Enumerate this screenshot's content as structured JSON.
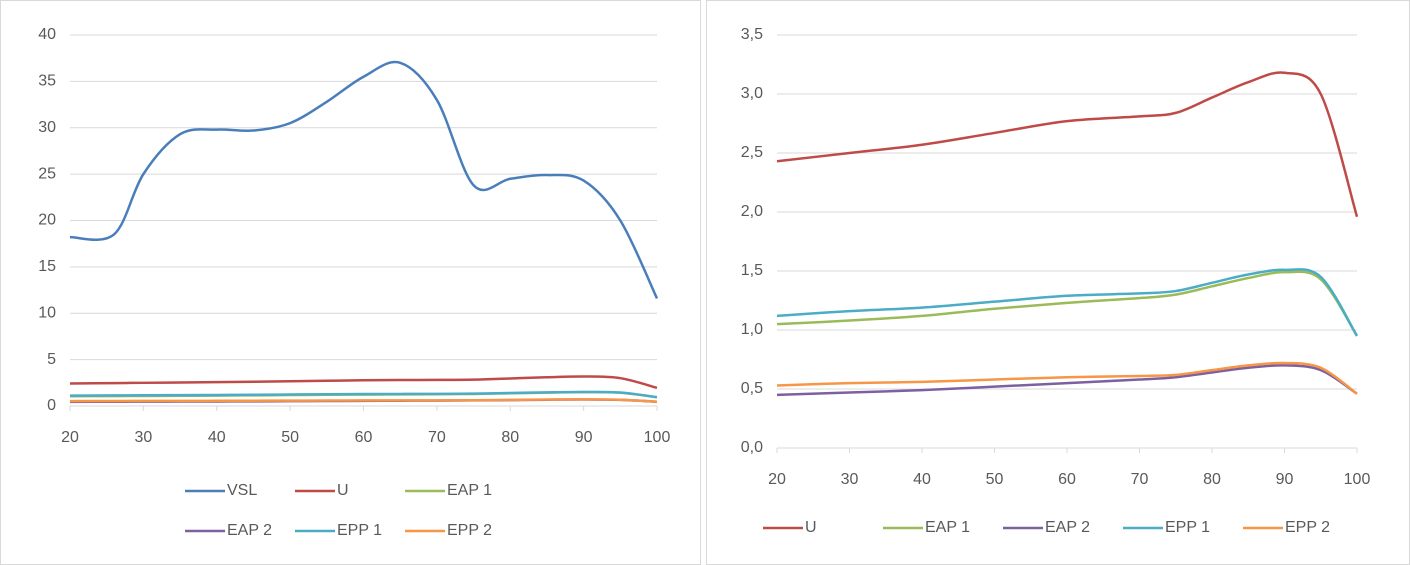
{
  "chart_data": [
    {
      "type": "line",
      "grid": true,
      "legend": "bottom",
      "x": [
        20,
        26,
        30,
        35,
        40,
        45,
        50,
        55,
        60,
        65,
        70,
        75,
        80,
        85,
        90,
        95,
        100
      ],
      "xlim": [
        20,
        100
      ],
      "xticks": [
        20,
        30,
        40,
        50,
        60,
        70,
        80,
        90,
        100
      ],
      "ylim": [
        0,
        40
      ],
      "yticks": [
        0,
        5,
        10,
        15,
        20,
        25,
        30,
        35,
        40
      ],
      "series": [
        {
          "name": "VSL",
          "color": "#4a7ebb",
          "values": [
            18.2,
            18.5,
            25,
            29.3,
            29.8,
            29.7,
            30.5,
            32.8,
            35.5,
            37,
            33,
            23.8,
            24.5,
            24.9,
            24.3,
            20,
            11.6
          ]
        },
        {
          "name": "U",
          "color": "#be4b48",
          "values": [
            2.43,
            2.47,
            2.5,
            2.53,
            2.57,
            2.62,
            2.67,
            2.72,
            2.77,
            2.8,
            2.81,
            2.84,
            2.97,
            3.1,
            3.18,
            3.0,
            1.96
          ]
        },
        {
          "name": "EAP 1",
          "color": "#9bbb59",
          "values": [
            1.05,
            1.07,
            1.08,
            1.1,
            1.12,
            1.15,
            1.18,
            1.21,
            1.23,
            1.25,
            1.27,
            1.3,
            1.37,
            1.44,
            1.49,
            1.43,
            0.95
          ]
        },
        {
          "name": "EAP 2",
          "color": "#7d60a0",
          "values": [
            0.45,
            0.46,
            0.47,
            0.48,
            0.49,
            0.5,
            0.52,
            0.54,
            0.55,
            0.57,
            0.58,
            0.6,
            0.64,
            0.68,
            0.7,
            0.66,
            0.46
          ]
        },
        {
          "name": "EPP 1",
          "color": "#4bacc6",
          "values": [
            1.12,
            1.14,
            1.16,
            1.17,
            1.19,
            1.21,
            1.24,
            1.27,
            1.29,
            1.3,
            1.31,
            1.33,
            1.4,
            1.47,
            1.51,
            1.45,
            0.95
          ]
        },
        {
          "name": "EPP 2",
          "color": "#f79646",
          "values": [
            0.53,
            0.54,
            0.55,
            0.55,
            0.56,
            0.57,
            0.58,
            0.59,
            0.6,
            0.61,
            0.61,
            0.62,
            0.66,
            0.7,
            0.72,
            0.68,
            0.46
          ]
        }
      ]
    },
    {
      "type": "line",
      "grid": true,
      "legend": "bottom",
      "x": [
        20,
        30,
        40,
        50,
        60,
        70,
        75,
        80,
        85,
        90,
        95,
        100
      ],
      "xlim": [
        20,
        100
      ],
      "xticks": [
        20,
        30,
        40,
        50,
        60,
        70,
        80,
        90,
        100
      ],
      "ylim": [
        0,
        3.5
      ],
      "yticks": [
        {
          "value": 0,
          "label": "0,0"
        },
        {
          "value": 0.5,
          "label": "0,5"
        },
        {
          "value": 1,
          "label": "1,0"
        },
        {
          "value": 1.5,
          "label": "1,5"
        },
        {
          "value": 2,
          "label": "2,0"
        },
        {
          "value": 2.5,
          "label": "2,5"
        },
        {
          "value": 3,
          "label": "3,0"
        },
        {
          "value": 3.5,
          "label": "3,5"
        }
      ],
      "series": [
        {
          "name": "U",
          "color": "#be4b48",
          "values": [
            2.43,
            2.5,
            2.57,
            2.67,
            2.77,
            2.81,
            2.84,
            2.97,
            3.1,
            3.18,
            3.0,
            1.96
          ]
        },
        {
          "name": "EAP 1",
          "color": "#9bbb59",
          "values": [
            1.05,
            1.08,
            1.12,
            1.18,
            1.23,
            1.27,
            1.3,
            1.37,
            1.44,
            1.49,
            1.43,
            0.95
          ]
        },
        {
          "name": "EAP 2",
          "color": "#7d60a0",
          "values": [
            0.45,
            0.47,
            0.49,
            0.52,
            0.55,
            0.58,
            0.6,
            0.64,
            0.68,
            0.7,
            0.66,
            0.46
          ]
        },
        {
          "name": "EPP 1",
          "color": "#4bacc6",
          "values": [
            1.12,
            1.16,
            1.19,
            1.24,
            1.29,
            1.31,
            1.33,
            1.4,
            1.47,
            1.51,
            1.45,
            0.95
          ]
        },
        {
          "name": "EPP 2",
          "color": "#f79646",
          "values": [
            0.53,
            0.55,
            0.56,
            0.58,
            0.6,
            0.61,
            0.62,
            0.66,
            0.7,
            0.72,
            0.68,
            0.46
          ]
        }
      ]
    }
  ]
}
